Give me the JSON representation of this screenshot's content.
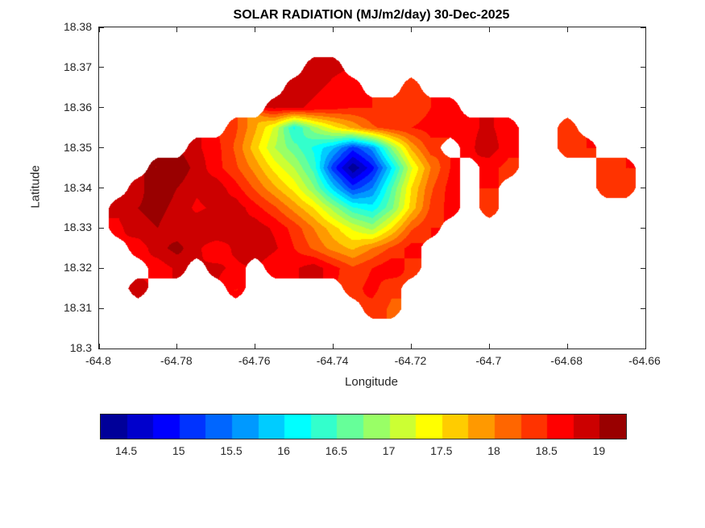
{
  "chart_data": {
    "type": "heatmap",
    "subtype": "filled-contour-map",
    "title": "SOLAR RADIATION (MJ/m2/day) 30-Dec-2025",
    "xlabel": "Longitude",
    "ylabel": "Latitude",
    "xlim": [
      -64.8,
      -64.66
    ],
    "ylim": [
      18.3,
      18.38
    ],
    "xticks": {
      "values": [
        -64.8,
        -64.78,
        -64.76,
        -64.74,
        -64.72,
        -64.7,
        -64.68,
        -64.66
      ],
      "labels": [
        "-64.8",
        "-64.78",
        "-64.76",
        "-64.74",
        "-64.72",
        "-64.7",
        "-64.68",
        "-64.66"
      ]
    },
    "yticks": {
      "values": [
        18.3,
        18.31,
        18.32,
        18.33,
        18.34,
        18.35,
        18.36,
        18.37,
        18.38
      ],
      "labels": [
        "18.3",
        "18.31",
        "18.32",
        "18.33",
        "18.34",
        "18.35",
        "18.36",
        "18.37",
        "18.38"
      ]
    },
    "colormap": "jet",
    "value_units": "MJ/m2/day",
    "value_range": [
      14.25,
      19.25
    ],
    "contour_band_step": 0.25,
    "colorbar": {
      "orientation": "horizontal",
      "tick_values": [
        14.5,
        15,
        15.5,
        16,
        16.5,
        17,
        17.5,
        18,
        18.5,
        19
      ],
      "tick_labels": [
        "14.5",
        "15",
        "15.5",
        "16",
        "16.5",
        "17",
        "17.5",
        "18",
        "18.5",
        "19"
      ]
    },
    "grid": {
      "lon_start": -64.8,
      "lon_step": 0.005,
      "lat_start": 18.38,
      "lat_step": -0.005,
      "values": [
        [
          null,
          null,
          null,
          null,
          null,
          null,
          null,
          null,
          null,
          null,
          null,
          null,
          null,
          null,
          null,
          null,
          null,
          null,
          null,
          null,
          null,
          null,
          null,
          null,
          null,
          null,
          null,
          null,
          null
        ],
        [
          null,
          null,
          null,
          null,
          null,
          null,
          null,
          null,
          null,
          null,
          null,
          null,
          null,
          null,
          null,
          null,
          null,
          null,
          null,
          null,
          null,
          null,
          null,
          null,
          null,
          null,
          null,
          null,
          null
        ],
        [
          null,
          null,
          null,
          null,
          null,
          null,
          null,
          null,
          null,
          null,
          null,
          18.9,
          18.8,
          null,
          null,
          null,
          null,
          null,
          null,
          null,
          null,
          null,
          null,
          null,
          null,
          null,
          null,
          null,
          null
        ],
        [
          null,
          null,
          null,
          null,
          null,
          null,
          null,
          null,
          null,
          null,
          18.9,
          18.8,
          18.7,
          18.6,
          null,
          null,
          18.4,
          null,
          null,
          null,
          null,
          null,
          null,
          null,
          null,
          null,
          null,
          null,
          null
        ],
        [
          null,
          null,
          null,
          null,
          null,
          null,
          null,
          null,
          null,
          18.8,
          18.8,
          18.7,
          18.6,
          18.5,
          18.5,
          18.4,
          18.3,
          18.5,
          18.6,
          null,
          null,
          null,
          null,
          null,
          null,
          null,
          null,
          null,
          null
        ],
        [
          null,
          null,
          null,
          null,
          null,
          null,
          null,
          18.3,
          17.8,
          17.2,
          16.2,
          16.9,
          17.4,
          17.8,
          18.2,
          18.4,
          18.5,
          18.6,
          18.5,
          18.7,
          18.8,
          18.6,
          null,
          null,
          18.4,
          null,
          null,
          null,
          null
        ],
        [
          null,
          null,
          null,
          null,
          null,
          18.8,
          18.6,
          18.2,
          17.6,
          17.0,
          16.6,
          16.2,
          15.8,
          15.1,
          15.6,
          16.8,
          17.8,
          18.4,
          null,
          18.7,
          18.9,
          18.6,
          null,
          null,
          18.3,
          18.5,
          null,
          null,
          null
        ],
        [
          null,
          null,
          null,
          19.0,
          19.2,
          18.9,
          18.6,
          18.3,
          17.9,
          17.4,
          17.0,
          16.4,
          15.1,
          14.3,
          14.9,
          16.0,
          17.2,
          18.0,
          18.5,
          null,
          18.6,
          18.4,
          null,
          null,
          null,
          null,
          18.4,
          18.5,
          null
        ],
        [
          null,
          null,
          18.9,
          19.2,
          19.0,
          18.8,
          18.9,
          18.6,
          18.2,
          17.8,
          17.4,
          16.8,
          15.9,
          15.1,
          15.5,
          16.5,
          17.5,
          18.2,
          18.6,
          null,
          18.5,
          null,
          null,
          null,
          null,
          null,
          18.3,
          18.4,
          null
        ],
        [
          null,
          18.8,
          19.0,
          19.1,
          18.9,
          18.7,
          18.8,
          18.9,
          18.6,
          18.3,
          17.9,
          17.5,
          16.9,
          16.3,
          16.1,
          16.7,
          17.6,
          18.3,
          18.6,
          null,
          18.4,
          null,
          null,
          null,
          null,
          null,
          null,
          null,
          null
        ],
        [
          null,
          18.7,
          18.9,
          19.0,
          18.8,
          18.9,
          19.0,
          18.8,
          18.9,
          18.7,
          18.4,
          18.0,
          17.6,
          17.2,
          16.9,
          17.5,
          18.2,
          18.5,
          null,
          null,
          null,
          null,
          null,
          null,
          null,
          null,
          null,
          null,
          null
        ],
        [
          null,
          null,
          18.6,
          18.9,
          19.1,
          18.8,
          18.6,
          18.8,
          19.0,
          18.8,
          18.5,
          18.2,
          17.9,
          17.7,
          18.0,
          18.3,
          18.6,
          null,
          null,
          null,
          null,
          null,
          null,
          null,
          null,
          null,
          null,
          null,
          null
        ],
        [
          null,
          null,
          null,
          18.6,
          18.8,
          null,
          18.8,
          18.7,
          null,
          18.5,
          18.7,
          18.9,
          18.6,
          18.3,
          18.5,
          18.7,
          18.4,
          null,
          null,
          null,
          null,
          null,
          null,
          null,
          null,
          null,
          null,
          null,
          null
        ],
        [
          null,
          null,
          18.8,
          null,
          null,
          null,
          null,
          18.5,
          null,
          null,
          null,
          null,
          null,
          18.4,
          18.6,
          18.3,
          null,
          null,
          null,
          null,
          null,
          null,
          null,
          null,
          null,
          null,
          null,
          null,
          null
        ],
        [
          null,
          null,
          null,
          null,
          null,
          null,
          null,
          null,
          null,
          null,
          null,
          null,
          null,
          null,
          18.4,
          18.2,
          null,
          null,
          null,
          null,
          null,
          null,
          null,
          null,
          null,
          null,
          null,
          null,
          null
        ],
        [
          null,
          null,
          null,
          null,
          null,
          null,
          null,
          null,
          null,
          null,
          null,
          null,
          null,
          null,
          null,
          null,
          null,
          null,
          null,
          null,
          null,
          null,
          null,
          null,
          null,
          null,
          null,
          null,
          null
        ],
        [
          null,
          null,
          null,
          null,
          null,
          null,
          null,
          null,
          null,
          null,
          null,
          null,
          null,
          null,
          null,
          null,
          null,
          null,
          null,
          null,
          null,
          null,
          null,
          null,
          null,
          null,
          null,
          null,
          null
        ]
      ]
    }
  }
}
